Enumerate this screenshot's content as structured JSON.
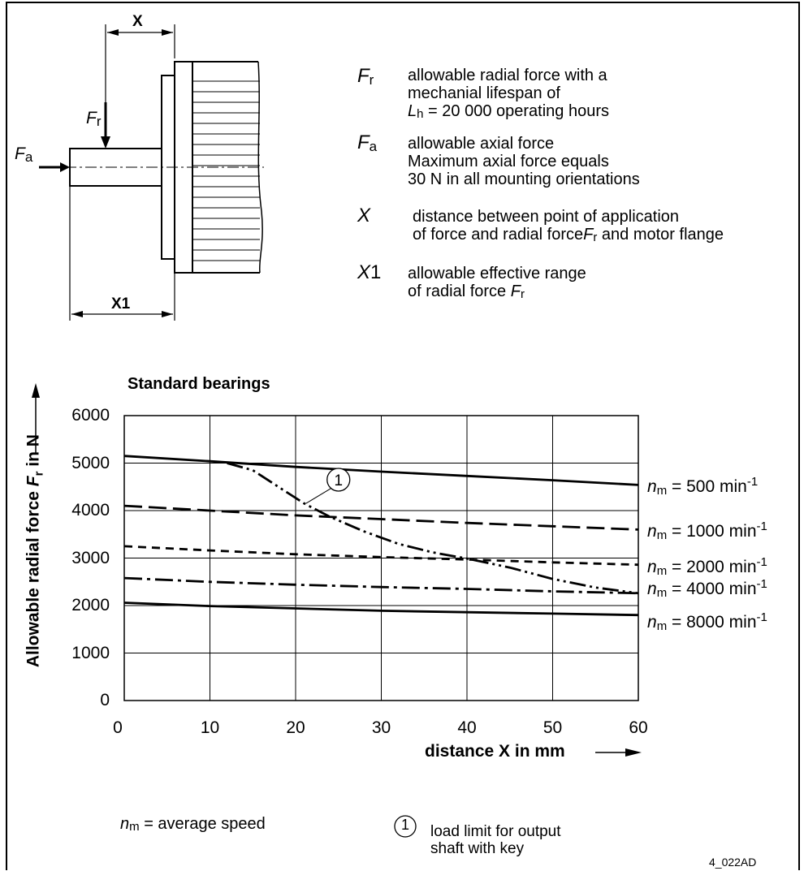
{
  "diagram": {
    "x_label": "X",
    "x1_label": "X1",
    "fr_symbol": "F",
    "fr_sub": "r",
    "fa_symbol": "F",
    "fa_sub": "a"
  },
  "legend": [
    {
      "symbol": "F",
      "sub": "r",
      "lines": [
        "allowable radial force with a",
        "mechanial lifespan of",
        "= 20 000 operating hours"
      ],
      "line3_prefix": "L",
      "line3_sub": "h"
    },
    {
      "symbol": "F",
      "sub": "a",
      "lines": [
        "allowable axial force",
        "Maximum axial force equals",
        "30 N in all mounting orientations"
      ]
    },
    {
      "symbol": "X",
      "sub": "",
      "lines": [
        "distance between point of application",
        "of force and radial force",
        "and motor flange"
      ],
      "inline_sym": "F",
      "inline_sub": "r"
    },
    {
      "symbol": "X",
      "sub": "1",
      "lines": [
        "allowable effective range",
        "of radial force"
      ],
      "inline_sym": "F",
      "inline_sub": "r"
    }
  ],
  "chart_data": {
    "type": "line",
    "title": "Standard bearings",
    "xlabel": "distance X in mm",
    "ylabel_prefix": "Allowable radial force",
    "ylabel_sym": "F",
    "ylabel_sub": "r",
    "ylabel_suffix": "in N",
    "xlim": [
      0,
      60
    ],
    "ylim": [
      0,
      6000
    ],
    "x_ticks": [
      0,
      10,
      20,
      30,
      40,
      50,
      60
    ],
    "y_ticks": [
      0,
      1000,
      2000,
      3000,
      4000,
      5000,
      6000
    ],
    "grid": true,
    "series": [
      {
        "name": "500",
        "style": "solid",
        "x": [
          0,
          10,
          20,
          30,
          40,
          50,
          60
        ],
        "y": [
          5150,
          5040,
          4920,
          4820,
          4730,
          4640,
          4540
        ]
      },
      {
        "name": "1000",
        "style": "dashed",
        "x": [
          0,
          10,
          20,
          30,
          40,
          50,
          60
        ],
        "y": [
          4100,
          4000,
          3900,
          3820,
          3740,
          3670,
          3600
        ]
      },
      {
        "name": "2000",
        "style": "short-dashed",
        "x": [
          0,
          10,
          20,
          30,
          40,
          50,
          60
        ],
        "y": [
          3250,
          3160,
          3080,
          3020,
          2970,
          2910,
          2860
        ]
      },
      {
        "name": "4000",
        "style": "dash-dot",
        "x": [
          0,
          10,
          20,
          30,
          40,
          50,
          60
        ],
        "y": [
          2580,
          2500,
          2440,
          2390,
          2350,
          2300,
          2260
        ]
      },
      {
        "name": "8000",
        "style": "solid",
        "x": [
          0,
          10,
          20,
          30,
          40,
          50,
          60
        ],
        "y": [
          2060,
          1990,
          1940,
          1890,
          1860,
          1830,
          1800
        ]
      },
      {
        "name": "1",
        "style": "dash-dot-dot",
        "x": [
          12,
          15,
          18,
          21,
          24,
          28,
          32,
          36,
          40,
          45,
          50,
          55,
          60
        ],
        "y": [
          5000,
          4850,
          4500,
          4150,
          3870,
          3560,
          3300,
          3120,
          2990,
          2800,
          2560,
          2380,
          2260
        ]
      }
    ],
    "series_label_prefix": "n",
    "series_label_sub": "m",
    "series_label_unit": "min",
    "series_label_exp": "-1",
    "limit_marker": "1"
  },
  "footer": {
    "nm_sym": "n",
    "nm_sub": "m",
    "nm_text": "= average speed",
    "marker": "1",
    "limit_lines": [
      "load limit for output",
      "shaft with key"
    ],
    "code": "4_022AD"
  }
}
